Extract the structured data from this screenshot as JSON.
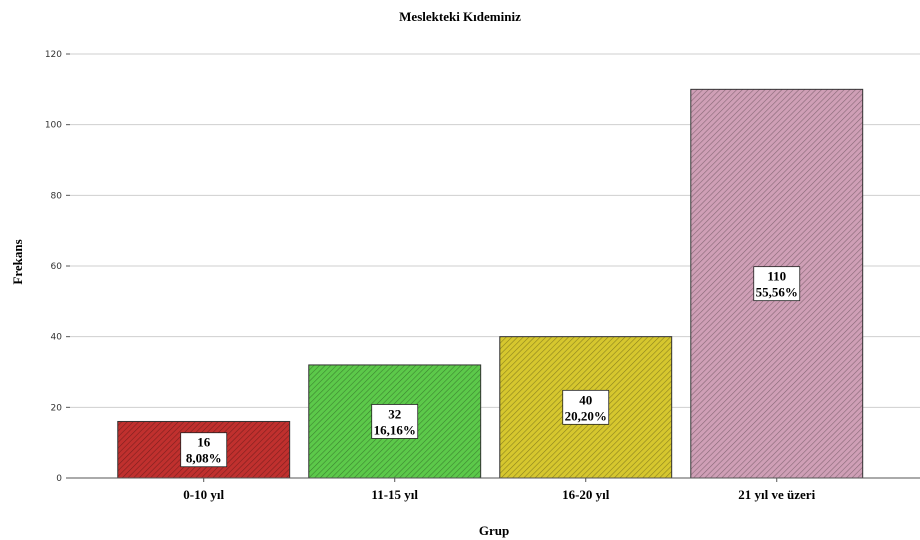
{
  "chart_data": {
    "type": "bar",
    "title": "Meslekteki Kıdeminiz",
    "xlabel": "Grup",
    "ylabel": "Frekans",
    "categories": [
      "0-10 yıl",
      "11-15 yıl",
      "16-20 yıl",
      "21 yıl ve üzeri"
    ],
    "values": [
      16,
      32,
      40,
      110
    ],
    "percent_labels": [
      "8,08%",
      "16,16%",
      "20,20%",
      "55,56%"
    ],
    "ylim": [
      0,
      120
    ],
    "yticks": [
      0,
      20,
      40,
      60,
      80,
      100,
      120
    ],
    "grid": true,
    "bar_colors": [
      "#c0302e",
      "#5cc94a",
      "#d6c72e",
      "#cf9fb6"
    ],
    "bar_pattern": "diagonal-hatch"
  }
}
